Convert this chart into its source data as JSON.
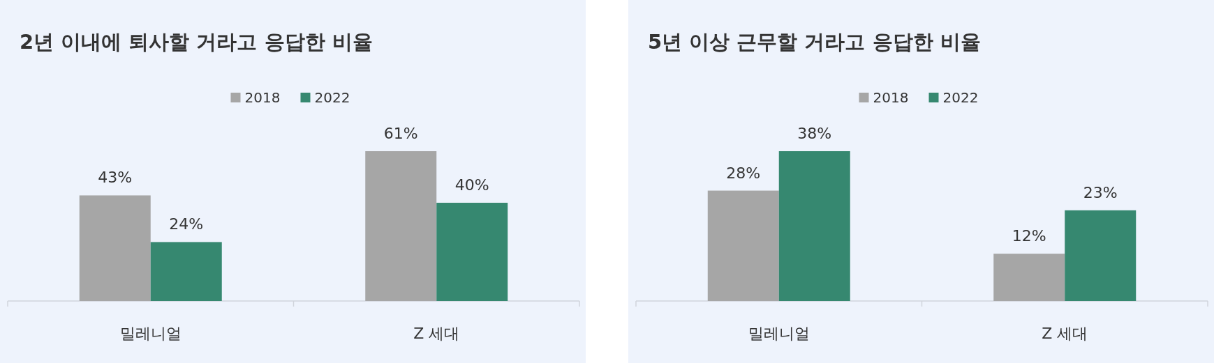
{
  "chart_data": [
    {
      "type": "bar",
      "title": "2년 이내에 퇴사할 거라고 응답한 비율",
      "categories": [
        "밀레니얼",
        "Z 세대"
      ],
      "legend": "top",
      "series": [
        {
          "name": "2018",
          "color": "#a6a6a6",
          "values": [
            43,
            61
          ],
          "value_labels": [
            "43%",
            "61%"
          ]
        },
        {
          "name": "2022",
          "color": "#368870",
          "values": [
            24,
            40
          ],
          "value_labels": [
            "24%",
            "40%"
          ]
        }
      ]
    },
    {
      "type": "bar",
      "title": "5년 이상 근무할 거라고 응답한 비율",
      "categories": [
        "밀레니얼",
        "Z 세대"
      ],
      "legend": "top",
      "series": [
        {
          "name": "2018",
          "color": "#a6a6a6",
          "values": [
            28,
            12
          ],
          "value_labels": [
            "28%",
            "12%"
          ]
        },
        {
          "name": "2022",
          "color": "#368870",
          "values": [
            38,
            23
          ],
          "value_labels": [
            "38%",
            "23%"
          ]
        }
      ]
    }
  ]
}
